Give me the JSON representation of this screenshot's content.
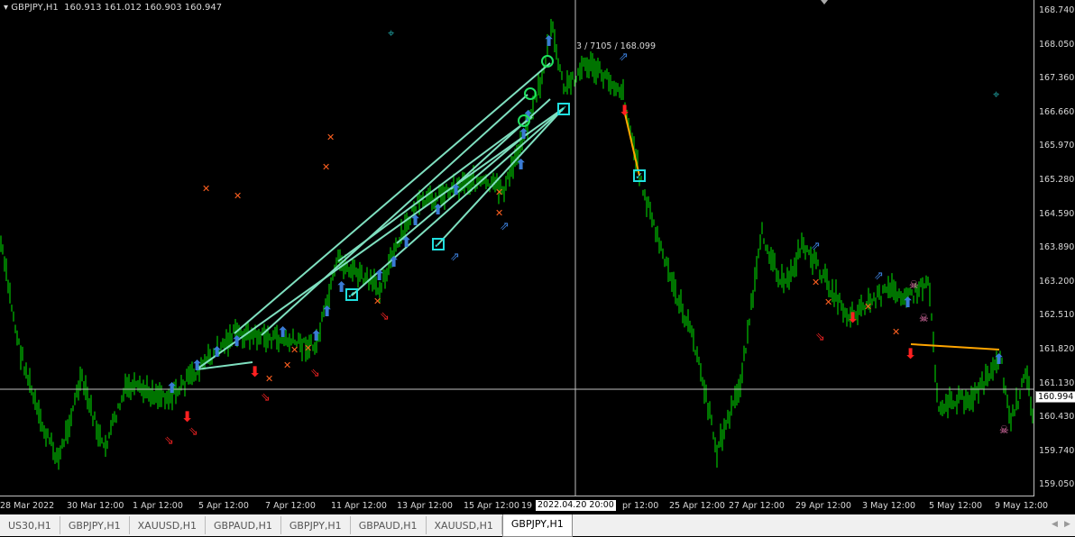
{
  "header": {
    "symbol": "GBPJPY,H1",
    "ohlc": "160.913 161.012 160.903 160.947"
  },
  "price_axis": [
    "168.740",
    "168.050",
    "167.360",
    "166.660",
    "165.970",
    "165.280",
    "164.590",
    "163.890",
    "163.200",
    "162.510",
    "161.820",
    "161.130",
    "160.430",
    "159.740",
    "159.050"
  ],
  "current_price": "160.994",
  "time_axis": [
    "28 Mar 2022",
    "30 Mar 12:00",
    "1 Apr 12:00",
    "5 Apr 12:00",
    "7 Apr 12:00",
    "11 Apr 12:00",
    "13 Apr 12:00",
    "15 Apr 12:00",
    "19",
    "pr 12:00",
    "25 Apr 12:00",
    "27 Apr 12:00",
    "29 Apr 12:00",
    "3 May 12:00",
    "5 May 12:00",
    "9 May 12:00"
  ],
  "crosshair": {
    "time": "2022.04.20 20:00",
    "readout": "3 / 7105 / 168.099"
  },
  "tabs": [
    "US30,H1",
    "GBPJPY,H1",
    "XAUUSD,H1",
    "GBPAUD,H1",
    "GBPJPY,H1",
    "GBPAUD,H1",
    "XAUUSD,H1",
    "GBPJPY,H1"
  ],
  "active_tab": 7,
  "colors": {
    "bull": "#00c000",
    "bg": "#000000",
    "signal_line": "#7fe0c0",
    "up_arrow": "#3a7bd5",
    "down_arrow": "#ff2020",
    "cross": "#ff6020",
    "exit_line": "#ffa500"
  }
}
